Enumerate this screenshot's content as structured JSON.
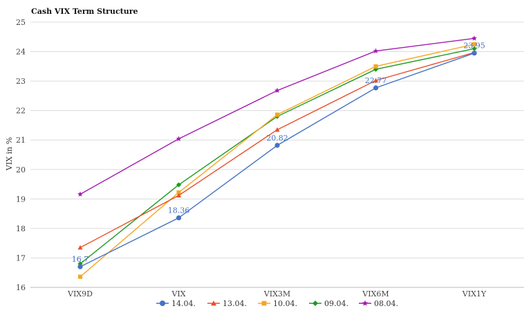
{
  "chart_data": {
    "type": "line",
    "title": "Cash VIX Term Structure",
    "xlabel": "",
    "ylabel": "VIX in %",
    "categories": [
      "VIX9D",
      "VIX",
      "VIX3M",
      "VIX6M",
      "VIX1Y"
    ],
    "ylim": [
      16,
      25
    ],
    "yticks": [
      "16",
      "17",
      "18",
      "19",
      "20",
      "21",
      "22",
      "23",
      "24",
      "25"
    ],
    "grid": true,
    "legend_position": "bottom",
    "series": [
      {
        "name": "14.04.",
        "color": "#4472c4",
        "marker": "circle",
        "values": [
          16.7,
          18.36,
          20.82,
          22.77,
          23.95
        ],
        "labels": [
          "16.7",
          "18.36",
          "20.82",
          "22.77",
          "23.95"
        ]
      },
      {
        "name": "13.04.",
        "color": "#e8502a",
        "marker": "triangle",
        "values": [
          17.35,
          19.12,
          21.35,
          23.02,
          23.97
        ]
      },
      {
        "name": "10.04.",
        "color": "#f5a623",
        "marker": "square",
        "values": [
          16.36,
          19.22,
          21.86,
          23.5,
          24.25
        ]
      },
      {
        "name": "09.04.",
        "color": "#1f9a1f",
        "marker": "diamond",
        "values": [
          16.8,
          19.48,
          21.8,
          23.4,
          24.1
        ]
      },
      {
        "name": "08.04.",
        "color": "#a21caf",
        "marker": "star",
        "values": [
          19.16,
          21.04,
          22.68,
          24.02,
          24.45
        ]
      }
    ]
  }
}
